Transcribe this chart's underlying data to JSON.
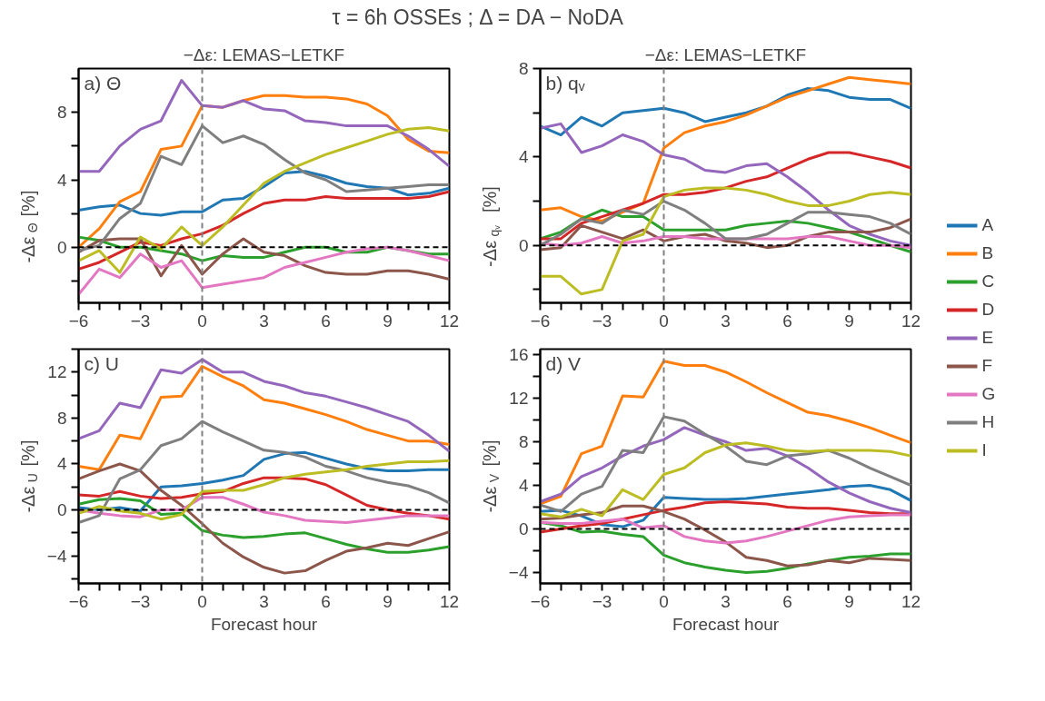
{
  "chart_data": [
    {
      "type": "line",
      "title": "τ = 6h OSSEs ; Δ = DA − NoDA",
      "subtitle": "−Δε: LEMAS−LETKF",
      "ylabel": "-Δε$_{Θ}$ [%]",
      "annotations": [
        "a) Θ"
      ],
      "x": [
        -6,
        -5,
        -4,
        -3,
        -2,
        -1,
        0,
        1,
        2,
        3,
        4,
        5,
        6,
        7,
        8,
        9,
        10,
        11,
        12
      ],
      "xlim": [
        -6,
        12
      ],
      "xticks": [
        -6,
        {
          "value": -5,
          "label": null
        },
        {
          "value": -4,
          "label": null
        },
        -3,
        {
          "value": -2,
          "label": null
        },
        {
          "value": -1,
          "label": null
        },
        0,
        {
          "value": 1,
          "label": null
        },
        {
          "value": 2,
          "label": null
        },
        3,
        {
          "value": 4,
          "label": null
        },
        {
          "value": 5,
          "label": null
        },
        6,
        {
          "value": 7,
          "label": null
        },
        {
          "value": 8,
          "label": null
        },
        9,
        {
          "value": 10,
          "label": null
        },
        {
          "value": 11,
          "label": null
        },
        12
      ],
      "ylim": [
        -3.3,
        10.6
      ],
      "yticks": [
        {
          "value": -2,
          "label": null
        },
        0,
        {
          "value": 2,
          "label": null
        },
        4,
        {
          "value": 6,
          "label": null
        },
        8,
        {
          "value": 10,
          "label": null
        }
      ],
      "ref_lines": [
        {
          "axis": "y",
          "value": 0,
          "color": "#000000",
          "line_style": "dashed"
        },
        {
          "axis": "x",
          "value": 0,
          "color": "#808080",
          "line_style": "dashed"
        }
      ],
      "series": [
        {
          "color": "#1f77b4",
          "values": [
            2.2,
            2.4,
            2.5,
            2.0,
            1.9,
            2.1,
            2.1,
            2.8,
            2.9,
            3.6,
            4.4,
            4.5,
            4.2,
            3.8,
            3.6,
            3.5,
            3.1,
            3.2,
            3.5
          ]
        },
        {
          "color": "#ff7f0e",
          "values": [
            0.0,
            1.1,
            2.7,
            3.3,
            5.8,
            6.0,
            8.4,
            8.3,
            8.7,
            9.0,
            9.0,
            8.9,
            8.9,
            8.8,
            8.5,
            7.8,
            6.4,
            5.7,
            5.6
          ]
        },
        {
          "color": "#2ca02c",
          "values": [
            0.6,
            0.4,
            0.0,
            0.0,
            -0.2,
            -0.4,
            -0.8,
            -0.5,
            -0.6,
            -0.6,
            -0.3,
            0.0,
            0.0,
            -0.3,
            -0.3,
            0.0,
            -0.2,
            -0.4,
            -0.4
          ]
        },
        {
          "color": "#d62728",
          "values": [
            -1.3,
            -0.9,
            -0.3,
            0.3,
            0.1,
            0.5,
            0.8,
            1.3,
            2.0,
            2.6,
            2.8,
            2.8,
            3.0,
            2.9,
            2.9,
            2.9,
            2.9,
            3.0,
            3.3
          ]
        },
        {
          "color": "#9467bd",
          "values": [
            4.5,
            4.5,
            6.0,
            7.0,
            7.5,
            9.9,
            8.4,
            8.3,
            8.7,
            8.2,
            8.1,
            7.5,
            7.4,
            7.2,
            7.2,
            7.2,
            6.6,
            5.8,
            4.8
          ]
        },
        {
          "color": "#8c564b",
          "values": [
            -0.3,
            0.4,
            0.5,
            0.5,
            -1.7,
            0.1,
            -1.6,
            -0.4,
            0.5,
            -0.3,
            -0.5,
            -1.1,
            -1.5,
            -1.6,
            -1.6,
            -1.4,
            -1.4,
            -1.6,
            -1.9
          ]
        },
        {
          "color": "#e377c2",
          "values": [
            -2.8,
            -1.3,
            -1.8,
            -0.4,
            -1.2,
            -0.8,
            -2.4,
            -2.2,
            -2.0,
            -1.8,
            -1.2,
            -0.9,
            -0.6,
            -0.3,
            -0.1,
            0.0,
            -0.2,
            -0.5,
            -0.8
          ]
        },
        {
          "color": "#7f7f7f",
          "values": [
            -0.2,
            0.1,
            1.7,
            2.6,
            5.4,
            4.9,
            7.2,
            6.2,
            6.6,
            6.1,
            5.2,
            4.4,
            4.0,
            3.3,
            3.4,
            3.5,
            3.6,
            3.7,
            3.7
          ]
        },
        {
          "color": "#bcbd22",
          "values": [
            -0.8,
            -0.2,
            -1.5,
            0.6,
            -0.1,
            1.2,
            0.1,
            1.2,
            2.5,
            3.8,
            4.5,
            5.0,
            5.5,
            5.9,
            6.3,
            6.7,
            7.0,
            7.1,
            6.9
          ]
        }
      ]
    },
    {
      "type": "line",
      "subtitle": "−Δε: LEMAS−LETKF",
      "ylabel": "-Δε$_{qᵥ}$ [%]",
      "annotations": [
        "b) qᵥ"
      ],
      "legend": "right",
      "x": [
        -6,
        -5,
        -4,
        -3,
        -2,
        -1,
        0,
        1,
        2,
        3,
        4,
        5,
        6,
        7,
        8,
        9,
        10,
        11,
        12
      ],
      "xlim": [
        -6,
        12
      ],
      "xticks": [
        -6,
        {
          "value": -5,
          "label": null
        },
        {
          "value": -4,
          "label": null
        },
        -3,
        {
          "value": -2,
          "label": null
        },
        {
          "value": -1,
          "label": null
        },
        0,
        {
          "value": 1,
          "label": null
        },
        {
          "value": 2,
          "label": null
        },
        3,
        {
          "value": 4,
          "label": null
        },
        {
          "value": 5,
          "label": null
        },
        6,
        {
          "value": 7,
          "label": null
        },
        {
          "value": 8,
          "label": null
        },
        9,
        {
          "value": 10,
          "label": null
        },
        {
          "value": 11,
          "label": null
        },
        12
      ],
      "ylim": [
        -2.6,
        8.0
      ],
      "yticks": [
        {
          "value": -2,
          "label": null
        },
        0,
        {
          "value": 2,
          "label": null
        },
        4,
        {
          "value": 6,
          "label": null
        },
        8
      ],
      "ref_lines": [
        {
          "axis": "y",
          "value": 0,
          "color": "#000000",
          "line_style": "dashed"
        },
        {
          "axis": "x",
          "value": 0,
          "color": "#808080",
          "line_style": "dashed"
        }
      ],
      "series": [
        {
          "name": "A",
          "color": "#1f77b4",
          "values": [
            5.4,
            5.0,
            5.8,
            5.4,
            6.0,
            6.1,
            6.2,
            6.0,
            5.6,
            5.8,
            6.0,
            6.3,
            6.8,
            7.1,
            7.0,
            6.7,
            6.6,
            6.6,
            6.2
          ]
        },
        {
          "name": "B",
          "color": "#ff7f0e",
          "values": [
            1.6,
            1.7,
            1.3,
            1.1,
            1.5,
            1.9,
            4.4,
            5.1,
            5.4,
            5.6,
            5.9,
            6.3,
            6.7,
            7.0,
            7.3,
            7.6,
            7.5,
            7.4,
            7.3
          ]
        },
        {
          "name": "C",
          "color": "#2ca02c",
          "values": [
            0.3,
            0.6,
            1.2,
            1.6,
            1.3,
            1.3,
            0.7,
            0.7,
            0.7,
            0.7,
            0.9,
            1.0,
            1.1,
            1.0,
            0.8,
            0.6,
            0.3,
            0.0,
            -0.3
          ]
        },
        {
          "name": "D",
          "color": "#d62728",
          "values": [
            0.3,
            0.3,
            1.0,
            1.3,
            1.6,
            1.9,
            2.3,
            2.3,
            2.4,
            2.6,
            2.9,
            3.1,
            3.5,
            3.9,
            4.2,
            4.2,
            4.0,
            3.8,
            3.5
          ]
        },
        {
          "name": "E",
          "color": "#9467bd",
          "values": [
            5.3,
            5.5,
            4.2,
            4.5,
            5.0,
            4.7,
            4.1,
            3.9,
            3.4,
            3.3,
            3.6,
            3.7,
            3.1,
            2.4,
            1.6,
            0.9,
            0.5,
            0.2,
            0.0
          ]
        },
        {
          "name": "F",
          "color": "#8c564b",
          "values": [
            -0.2,
            -0.1,
            0.9,
            0.6,
            0.3,
            0.7,
            0.2,
            0.4,
            0.5,
            0.2,
            0.1,
            -0.1,
            0.0,
            0.4,
            0.6,
            0.6,
            0.6,
            0.8,
            1.2
          ]
        },
        {
          "name": "G",
          "color": "#e377c2",
          "values": [
            0.1,
            0.0,
            0.1,
            0.4,
            0.1,
            0.2,
            0.4,
            0.4,
            0.3,
            0.3,
            0.3,
            0.3,
            0.3,
            0.4,
            0.4,
            0.2,
            0.0,
            0.0,
            -0.1
          ]
        },
        {
          "name": "H",
          "color": "#7f7f7f",
          "values": [
            0.0,
            0.5,
            1.2,
            1.0,
            1.6,
            1.4,
            2.0,
            1.6,
            1.0,
            0.3,
            0.3,
            0.5,
            1.0,
            1.5,
            1.5,
            1.4,
            1.3,
            1.0,
            0.5
          ]
        },
        {
          "name": "I",
          "color": "#bcbd22",
          "values": [
            -1.4,
            -1.4,
            -2.2,
            -2.0,
            0.2,
            0.5,
            2.2,
            2.5,
            2.6,
            2.6,
            2.5,
            2.3,
            2.0,
            1.8,
            1.8,
            2.0,
            2.3,
            2.4,
            2.3
          ]
        }
      ]
    },
    {
      "type": "line",
      "xlabel": "Forecast hour",
      "ylabel": "-Δε$_{U}$ [%]",
      "annotations": [
        "c) U"
      ],
      "x": [
        -6,
        -5,
        -4,
        -3,
        -2,
        -1,
        0,
        1,
        2,
        3,
        4,
        5,
        6,
        7,
        8,
        9,
        10,
        11,
        12
      ],
      "xlim": [
        -6,
        12
      ],
      "xticks": [
        -6,
        {
          "value": -5,
          "label": null
        },
        {
          "value": -4,
          "label": null
        },
        -3,
        {
          "value": -2,
          "label": null
        },
        {
          "value": -1,
          "label": null
        },
        0,
        {
          "value": 1,
          "label": null
        },
        {
          "value": 2,
          "label": null
        },
        3,
        {
          "value": 4,
          "label": null
        },
        {
          "value": 5,
          "label": null
        },
        6,
        {
          "value": 7,
          "label": null
        },
        {
          "value": 8,
          "label": null
        },
        9,
        {
          "value": 10,
          "label": null
        },
        {
          "value": 11,
          "label": null
        },
        12
      ],
      "ylim": [
        -6.4,
        14.0
      ],
      "yticks": [
        {
          "value": -6,
          "label": null
        },
        -4,
        {
          "value": -2,
          "label": null
        },
        0,
        {
          "value": 2,
          "label": null
        },
        4,
        {
          "value": 6,
          "label": null
        },
        8,
        {
          "value": 10,
          "label": null
        },
        12,
        {
          "value": 14,
          "label": null
        }
      ],
      "ref_lines": [
        {
          "axis": "y",
          "value": 0,
          "color": "#000000",
          "line_style": "dashed"
        },
        {
          "axis": "x",
          "value": 0,
          "color": "#808080",
          "line_style": "dashed"
        }
      ],
      "series": [
        {
          "color": "#1f77b4",
          "values": [
            0.2,
            0.0,
            0.2,
            -0.1,
            2.0,
            2.1,
            2.3,
            2.6,
            3.0,
            4.4,
            4.9,
            5.0,
            4.5,
            4.0,
            3.6,
            3.4,
            3.4,
            3.5,
            3.5
          ]
        },
        {
          "color": "#ff7f0e",
          "values": [
            3.8,
            3.5,
            6.5,
            6.2,
            9.8,
            9.9,
            12.5,
            11.6,
            10.8,
            9.6,
            9.3,
            8.8,
            8.3,
            7.7,
            7.0,
            6.5,
            6.0,
            6.0,
            5.7
          ]
        },
        {
          "color": "#2ca02c",
          "values": [
            0.5,
            0.9,
            1.0,
            0.8,
            -0.4,
            -0.3,
            -1.8,
            -2.2,
            -2.4,
            -2.3,
            -2.1,
            -2.0,
            -2.5,
            -3.0,
            -3.4,
            -3.7,
            -3.7,
            -3.5,
            -3.2
          ]
        },
        {
          "color": "#d62728",
          "values": [
            1.3,
            1.2,
            1.6,
            1.2,
            1.0,
            1.1,
            1.4,
            1.6,
            2.3,
            2.8,
            2.8,
            2.7,
            2.2,
            1.3,
            0.4,
            0.0,
            -0.3,
            -0.5,
            -0.8
          ]
        },
        {
          "color": "#9467bd",
          "values": [
            6.2,
            6.9,
            9.3,
            8.9,
            12.2,
            11.9,
            13.1,
            12.0,
            12.0,
            11.2,
            10.8,
            10.2,
            9.9,
            9.4,
            8.9,
            8.3,
            7.7,
            6.5,
            5.1
          ]
        },
        {
          "color": "#8c564b",
          "values": [
            2.7,
            3.4,
            4.0,
            3.4,
            1.7,
            0.4,
            -1.2,
            -2.9,
            -4.1,
            -5.0,
            -5.5,
            -5.3,
            -4.4,
            -3.6,
            -3.3,
            -2.9,
            -3.1,
            -2.5,
            -1.9
          ]
        },
        {
          "color": "#e377c2",
          "values": [
            0.0,
            -0.3,
            -0.5,
            -0.6,
            0.0,
            0.0,
            1.1,
            1.1,
            0.5,
            -0.2,
            -0.5,
            -0.9,
            -1.0,
            -1.1,
            -0.9,
            -0.7,
            -0.5,
            -0.5,
            -0.5
          ]
        },
        {
          "color": "#7f7f7f",
          "values": [
            -1.1,
            -0.5,
            2.7,
            3.5,
            5.6,
            6.2,
            7.7,
            6.8,
            6.0,
            5.2,
            5.0,
            4.6,
            3.8,
            3.4,
            2.8,
            2.4,
            2.1,
            1.5,
            0.6
          ]
        },
        {
          "color": "#bcbd22",
          "values": [
            -0.3,
            0.3,
            -0.1,
            -0.3,
            -0.8,
            -0.4,
            1.6,
            1.7,
            1.7,
            2.2,
            2.8,
            3.1,
            3.3,
            3.5,
            3.8,
            4.0,
            4.2,
            4.2,
            4.3
          ]
        }
      ]
    },
    {
      "type": "line",
      "xlabel": "Forecast hour",
      "ylabel": "-Δε$_{V}$ [%]",
      "annotations": [
        "d) V"
      ],
      "x": [
        -6,
        -5,
        -4,
        -3,
        -2,
        -1,
        0,
        1,
        2,
        3,
        4,
        5,
        6,
        7,
        8,
        9,
        10,
        11,
        12
      ],
      "xlim": [
        -6,
        12
      ],
      "xticks": [
        -6,
        {
          "value": -5,
          "label": null
        },
        {
          "value": -4,
          "label": null
        },
        -3,
        {
          "value": -2,
          "label": null
        },
        {
          "value": -1,
          "label": null
        },
        0,
        {
          "value": 1,
          "label": null
        },
        {
          "value": 2,
          "label": null
        },
        3,
        {
          "value": 4,
          "label": null
        },
        {
          "value": 5,
          "label": null
        },
        6,
        {
          "value": 7,
          "label": null
        },
        {
          "value": 8,
          "label": null
        },
        9,
        {
          "value": 10,
          "label": null
        },
        {
          "value": 11,
          "label": null
        },
        12
      ],
      "ylim": [
        -5.0,
        16.5
      ],
      "yticks": [
        -4,
        {
          "value": -2,
          "label": null
        },
        0,
        {
          "value": 2,
          "label": null
        },
        4,
        {
          "value": 6,
          "label": null
        },
        8,
        {
          "value": 10,
          "label": null
        },
        12,
        {
          "value": 14,
          "label": null
        },
        16
      ],
      "ref_lines": [
        {
          "axis": "y",
          "value": 0,
          "color": "#000000",
          "line_style": "dashed"
        },
        {
          "axis": "x",
          "value": 0,
          "color": "#808080",
          "line_style": "dashed"
        }
      ],
      "series": [
        {
          "color": "#1f77b4",
          "values": [
            1.6,
            1.7,
            1.2,
            0.4,
            0.2,
            0.8,
            2.9,
            2.8,
            2.7,
            2.7,
            2.8,
            3.0,
            3.2,
            3.4,
            3.6,
            3.9,
            4.0,
            3.6,
            2.6
          ]
        },
        {
          "color": "#ff7f0e",
          "values": [
            2.3,
            3.0,
            6.9,
            7.6,
            12.2,
            12.1,
            15.4,
            15.0,
            15.0,
            14.4,
            13.5,
            12.5,
            11.6,
            10.7,
            10.4,
            9.9,
            9.3,
            8.6,
            7.9
          ]
        },
        {
          "color": "#2ca02c",
          "values": [
            0.6,
            0.3,
            -0.3,
            -0.2,
            -0.5,
            -0.7,
            -2.4,
            -3.1,
            -3.5,
            -3.8,
            -4.0,
            -3.9,
            -3.6,
            -3.2,
            -2.9,
            -2.6,
            -2.5,
            -2.3,
            -2.3
          ]
        },
        {
          "color": "#d62728",
          "values": [
            -0.3,
            0.0,
            0.3,
            0.5,
            0.9,
            1.3,
            1.7,
            2.0,
            2.4,
            2.5,
            2.4,
            2.3,
            2.0,
            1.9,
            1.9,
            1.7,
            1.5,
            1.4,
            1.4
          ]
        },
        {
          "color": "#9467bd",
          "values": [
            2.5,
            3.2,
            4.8,
            5.6,
            6.7,
            7.6,
            8.2,
            9.3,
            8.6,
            8.0,
            7.2,
            7.4,
            6.7,
            5.6,
            4.3,
            3.3,
            2.5,
            1.9,
            1.5
          ]
        },
        {
          "color": "#8c564b",
          "values": [
            0.9,
            1.0,
            1.3,
            1.5,
            2.1,
            2.1,
            1.6,
            0.9,
            -0.1,
            -1.2,
            -2.6,
            -2.9,
            -3.4,
            -3.3,
            -2.9,
            -3.1,
            -2.7,
            -2.8,
            -2.9
          ]
        },
        {
          "color": "#e377c2",
          "values": [
            0.6,
            0.5,
            0.5,
            0.7,
            0.9,
            0.1,
            0.3,
            -0.7,
            -1.1,
            -1.3,
            -1.1,
            -0.7,
            -0.2,
            0.3,
            0.8,
            1.1,
            1.2,
            1.3,
            1.3
          ]
        },
        {
          "color": "#7f7f7f",
          "values": [
            2.2,
            1.6,
            3.2,
            3.9,
            7.2,
            7.0,
            10.3,
            9.9,
            8.7,
            7.6,
            6.2,
            5.9,
            6.7,
            6.9,
            7.2,
            6.5,
            5.6,
            4.8,
            4.0
          ]
        },
        {
          "color": "#bcbd22",
          "values": [
            1.4,
            1.1,
            1.8,
            1.2,
            3.6,
            2.7,
            5.0,
            5.6,
            7.0,
            7.7,
            7.9,
            7.6,
            7.2,
            7.1,
            7.2,
            7.2,
            7.2,
            7.1,
            6.7
          ]
        }
      ]
    }
  ]
}
